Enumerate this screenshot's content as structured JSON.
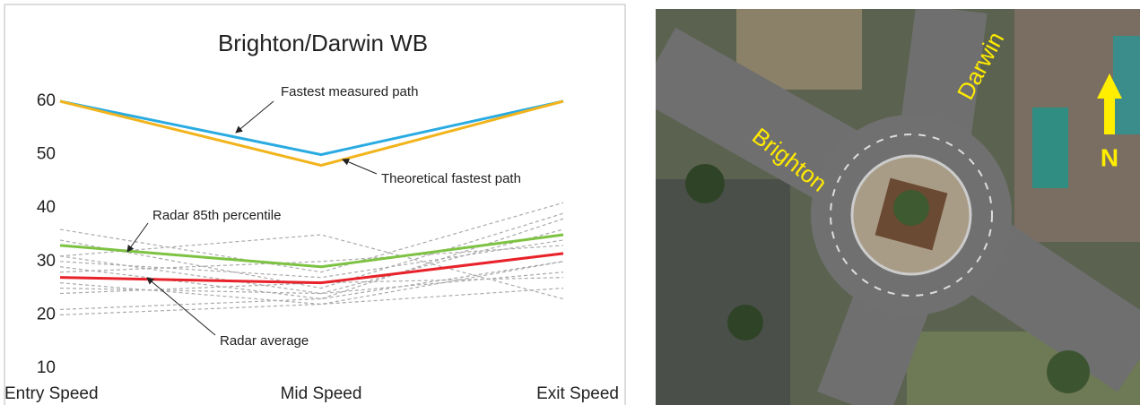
{
  "chart_data": {
    "type": "line",
    "title": "Brighton/Darwin WB",
    "categories": [
      "Entry Speed",
      "Mid Speed",
      "Exit Speed"
    ],
    "ylim": [
      10,
      60
    ],
    "yticks": [
      10,
      20,
      30,
      40,
      50,
      60
    ],
    "series": [
      {
        "color": "#aaaaaa",
        "style": "dashed",
        "values": [
          36,
          28,
          41
        ]
      },
      {
        "color": "#aaaaaa",
        "style": "dashed",
        "values": [
          34,
          25,
          39
        ]
      },
      {
        "color": "#aaaaaa",
        "style": "dashed",
        "values": [
          31,
          24,
          36
        ]
      },
      {
        "color": "#aaaaaa",
        "style": "dashed",
        "values": [
          30,
          27,
          34
        ]
      },
      {
        "color": "#aaaaaa",
        "style": "dashed",
        "values": [
          29,
          23,
          38
        ]
      },
      {
        "color": "#aaaaaa",
        "style": "dashed",
        "values": [
          28,
          30,
          33
        ]
      },
      {
        "color": "#aaaaaa",
        "style": "dashed",
        "values": [
          26,
          22,
          30
        ]
      },
      {
        "color": "#aaaaaa",
        "style": "dashed",
        "values": [
          25,
          24,
          28
        ]
      },
      {
        "color": "#aaaaaa",
        "style": "dashed",
        "values": [
          24,
          26,
          27
        ]
      },
      {
        "color": "#aaaaaa",
        "style": "dashed",
        "values": [
          21,
          23,
          30
        ]
      },
      {
        "color": "#aaaaaa",
        "style": "dashed",
        "values": [
          20,
          22,
          25
        ]
      },
      {
        "color": "#aaaaaa",
        "style": "dashed",
        "values": [
          31,
          35,
          23
        ]
      },
      {
        "color": "#29abe2",
        "style": "solid",
        "values": [
          60,
          50,
          60
        ]
      },
      {
        "color": "#f2b41c",
        "style": "solid",
        "values": [
          60,
          48,
          60
        ]
      },
      {
        "color": "#7dc242",
        "style": "solid",
        "values": [
          33,
          29,
          35
        ]
      },
      {
        "color": "#e8222a",
        "style": "solid",
        "values": [
          27,
          26,
          31.5
        ]
      }
    ],
    "annotations": [
      "Fastest measured path",
      "Theoretical fastest path",
      "Radar 85th percentile",
      "Radar average"
    ]
  },
  "map": {
    "labels": [
      "Brighton",
      "Darwin"
    ],
    "north": "N"
  }
}
